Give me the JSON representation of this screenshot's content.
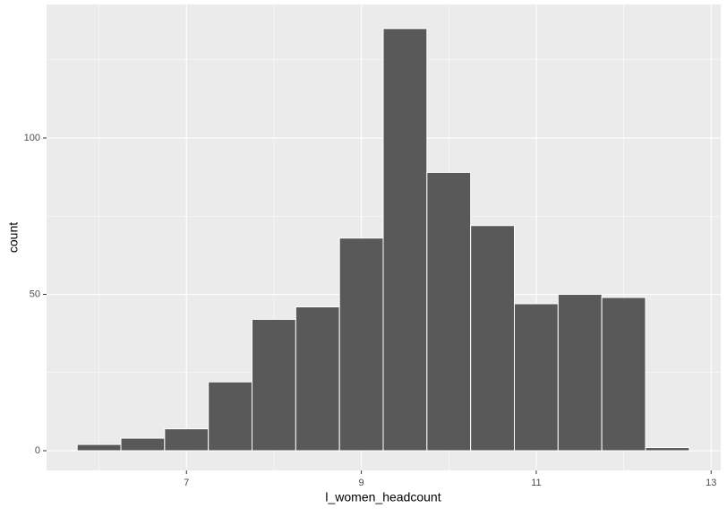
{
  "chart_data": {
    "type": "histogram",
    "x_label": "l_women_headcount",
    "y_label": "count",
    "bins": [
      5.75,
      6.25,
      6.75,
      7.25,
      7.75,
      8.25,
      8.75,
      9.25,
      9.75,
      10.25,
      10.75,
      11.25,
      11.75,
      12.25,
      12.75
    ],
    "values": [
      2,
      4,
      7,
      22,
      42,
      46,
      68,
      135,
      89,
      72,
      47,
      50,
      49,
      1
    ],
    "color": "#595959",
    "xlim": [
      5.4,
      13.11
    ],
    "xticks": [
      7,
      9,
      11,
      13
    ],
    "x_minor_grid": [
      6,
      8,
      10,
      12
    ],
    "ylim": [
      -6.3,
      142.7
    ],
    "yticks": [
      0,
      50,
      100
    ],
    "y_minor_grid": [
      25,
      75,
      125
    ],
    "grid": true
  }
}
